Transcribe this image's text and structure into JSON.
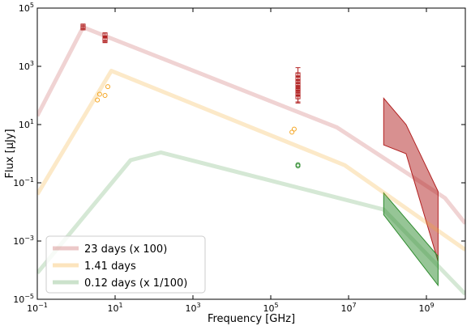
{
  "chart_data": {
    "type": "line",
    "title": "",
    "xlabel": "Frequency [GHz]",
    "ylabel": "Flux [μJy]",
    "xscale": "log",
    "yscale": "log",
    "xlim": [
      0.1,
      10000000000
    ],
    "ylim": [
      1e-05,
      100000
    ],
    "x_ticks": [
      {
        "value": 0.1,
        "mant": "10",
        "exp": "−1"
      },
      {
        "value": 10,
        "mant": "10",
        "exp": "1"
      },
      {
        "value": 1000,
        "mant": "10",
        "exp": "3"
      },
      {
        "value": 100000,
        "mant": "10",
        "exp": "5"
      },
      {
        "value": 10000000,
        "mant": "10",
        "exp": "7"
      },
      {
        "value": 1000000000,
        "mant": "10",
        "exp": "9"
      }
    ],
    "y_ticks": [
      {
        "value": 1e-05,
        "mant": "10",
        "exp": "−5"
      },
      {
        "value": 0.001,
        "mant": "10",
        "exp": "−3"
      },
      {
        "value": 0.1,
        "mant": "10",
        "exp": "−1"
      },
      {
        "value": 10,
        "mant": "10",
        "exp": "1"
      },
      {
        "value": 1000,
        "mant": "10",
        "exp": "3"
      },
      {
        "value": 100000,
        "mant": "10",
        "exp": "5"
      }
    ],
    "grid": false,
    "legend_position": "bottom-left",
    "series": [
      {
        "name": "23 days (x 100)",
        "color": "#b22222",
        "line_opacity": 0.2,
        "model": [
          [
            0.1,
            20
          ],
          [
            1.5,
            22000
          ],
          [
            5000000,
            8
          ],
          [
            3000000000,
            0.03
          ],
          [
            10000000000,
            0.004
          ]
        ],
        "points": [
          {
            "x": 1.5,
            "y": 24000,
            "lo": 20000,
            "hi": 28000
          },
          {
            "x": 1.5,
            "y": 21000,
            "lo": 18000,
            "hi": 24000
          },
          {
            "x": 5.5,
            "y": 12000,
            "lo": 10000,
            "hi": 14000
          },
          {
            "x": 5.5,
            "y": 9000,
            "lo": 7500,
            "hi": 11000
          },
          {
            "x": 5.5,
            "y": 8000,
            "lo": 6500,
            "hi": 9500
          },
          {
            "x": 500000,
            "y": 500,
            "lo": 350,
            "hi": 900
          },
          {
            "x": 500000,
            "y": 400,
            "lo": 280,
            "hi": 600
          },
          {
            "x": 500000,
            "y": 300,
            "lo": 200,
            "hi": 450
          },
          {
            "x": 500000,
            "y": 220,
            "lo": 150,
            "hi": 320
          },
          {
            "x": 500000,
            "y": 180,
            "lo": 120,
            "hi": 260
          },
          {
            "x": 500000,
            "y": 150,
            "lo": 100,
            "hi": 220
          },
          {
            "x": 500000,
            "y": 110,
            "lo": 60,
            "hi": 170
          },
          {
            "x": 500000,
            "y": 90,
            "lo": 55,
            "hi": 140
          }
        ],
        "band": {
          "upper": [
            [
              80000000,
              80
            ],
            [
              300000000,
              10
            ],
            [
              2000000000,
              0.05
            ]
          ],
          "lower": [
            [
              80000000,
              2
            ],
            [
              300000000,
              1
            ],
            [
              2000000000,
              0.0002
            ]
          ]
        }
      },
      {
        "name": "1.41 days",
        "color": "#f5a623",
        "line_opacity": 0.25,
        "model": [
          [
            0.1,
            0.04
          ],
          [
            8,
            700
          ],
          [
            8000000,
            0.4
          ],
          [
            10000000000,
            0.0005
          ]
        ],
        "points": [
          {
            "x": 3.5,
            "y": 70
          },
          {
            "x": 4,
            "y": 110
          },
          {
            "x": 5.5,
            "y": 100
          },
          {
            "x": 6.5,
            "y": 200
          },
          {
            "x": 350000,
            "y": 5.5
          },
          {
            "x": 400000,
            "y": 7
          }
        ]
      },
      {
        "name": "0.12 days (x 1/100)",
        "color": "#2e8b2e",
        "line_opacity": 0.2,
        "model": [
          [
            0.1,
            8e-05
          ],
          [
            25,
            0.6
          ],
          [
            150,
            1.1
          ],
          [
            80000000,
            0.012
          ],
          [
            10000000000,
            1.5e-05
          ]
        ],
        "points": [
          {
            "x": 500000,
            "y": 0.42
          },
          {
            "x": 500000,
            "y": 0.38
          }
        ],
        "band": {
          "upper": [
            [
              80000000,
              0.045
            ],
            [
              2000000000,
              0.0003
            ]
          ],
          "lower": [
            [
              80000000,
              0.008
            ],
            [
              2000000000,
              3e-05
            ]
          ]
        }
      }
    ]
  }
}
